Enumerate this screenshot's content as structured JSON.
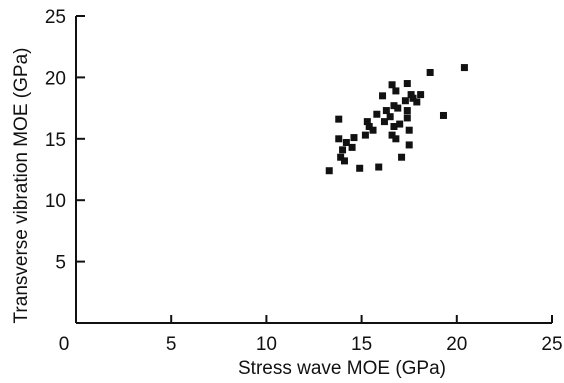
{
  "chart_data": {
    "type": "scatter",
    "title": "",
    "xlabel": "Stress wave MOE (GPa)",
    "ylabel": "Transverse vibration MOE (GPa)",
    "xlim": [
      0,
      25
    ],
    "ylim": [
      0,
      25
    ],
    "xticks": [
      0,
      5,
      10,
      15,
      20,
      25
    ],
    "yticks": [
      5,
      10,
      15,
      20,
      25
    ],
    "xtick_labels": [
      "0",
      "5",
      "10",
      "15",
      "20",
      "25"
    ],
    "ytick_labels": [
      "5",
      "10",
      "15",
      "20",
      "25"
    ],
    "grid": false,
    "legend": "none",
    "marker": "square",
    "marker_color": "#111111",
    "series": [
      {
        "points": [
          [
            13.3,
            12.4
          ],
          [
            13.8,
            16.6
          ],
          [
            13.8,
            15.0
          ],
          [
            13.9,
            13.5
          ],
          [
            14.0,
            14.1
          ],
          [
            14.1,
            13.2
          ],
          [
            14.2,
            14.7
          ],
          [
            14.5,
            14.3
          ],
          [
            14.6,
            15.1
          ],
          [
            14.9,
            12.6
          ],
          [
            15.2,
            15.3
          ],
          [
            15.3,
            16.4
          ],
          [
            15.4,
            16.0
          ],
          [
            15.6,
            15.7
          ],
          [
            15.8,
            17.0
          ],
          [
            15.9,
            12.7
          ],
          [
            16.1,
            18.5
          ],
          [
            16.2,
            16.4
          ],
          [
            16.3,
            17.3
          ],
          [
            16.5,
            16.8
          ],
          [
            16.6,
            19.4
          ],
          [
            16.6,
            15.3
          ],
          [
            16.7,
            17.7
          ],
          [
            16.7,
            16.0
          ],
          [
            16.8,
            15.0
          ],
          [
            16.8,
            18.9
          ],
          [
            16.9,
            17.5
          ],
          [
            17.0,
            16.2
          ],
          [
            17.1,
            13.5
          ],
          [
            17.3,
            18.1
          ],
          [
            17.4,
            19.5
          ],
          [
            17.4,
            17.3
          ],
          [
            17.4,
            16.7
          ],
          [
            17.5,
            15.7
          ],
          [
            17.5,
            14.5
          ],
          [
            17.6,
            18.6
          ],
          [
            17.7,
            18.3
          ],
          [
            17.9,
            18.0
          ],
          [
            18.1,
            18.6
          ],
          [
            18.6,
            20.4
          ],
          [
            19.3,
            16.9
          ],
          [
            20.4,
            20.8
          ]
        ]
      }
    ]
  }
}
